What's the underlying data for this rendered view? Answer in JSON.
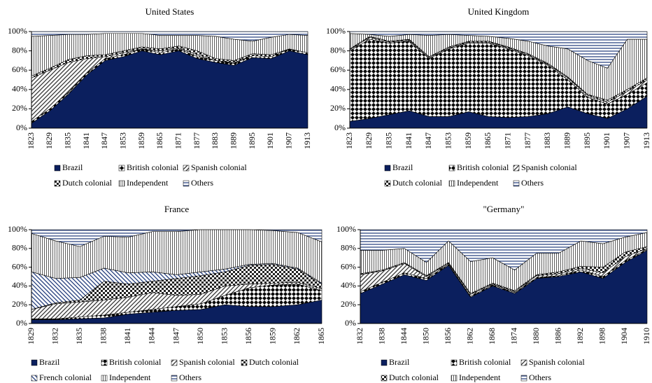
{
  "chart_data": [
    {
      "type": "area",
      "stacked": true,
      "title": "United States",
      "categories": [
        "1823",
        "1829",
        "1835",
        "1841",
        "1847",
        "1853",
        "1859",
        "1865",
        "1871",
        "1877",
        "1883",
        "1889",
        "1895",
        "1901",
        "1907",
        "1913"
      ],
      "ylim": [
        0,
        100
      ],
      "yticks": [
        {
          "value": 0,
          "label": "0%"
        },
        {
          "value": 20,
          "label": "20%"
        },
        {
          "value": 40,
          "label": "40%"
        },
        {
          "value": 60,
          "label": "60%"
        },
        {
          "value": 80,
          "label": "80%"
        },
        {
          "value": 100,
          "label": "100%"
        }
      ],
      "series": [
        {
          "name": "Brazil",
          "color": "#0b1f5e",
          "pattern": "solid",
          "values": [
            5,
            18,
            35,
            55,
            70,
            74,
            80,
            76,
            80,
            72,
            68,
            65,
            73,
            72,
            80,
            76
          ]
        },
        {
          "name": "British colonial",
          "color": "#000000",
          "pattern": "cross",
          "values": [
            2,
            2,
            2,
            2,
            2,
            2,
            2,
            2,
            2,
            2,
            2,
            2,
            2,
            2,
            2,
            2
          ]
        },
        {
          "name": "Spanish colonial",
          "color": "#333333",
          "pattern": "diagonal",
          "values": [
            45,
            40,
            31,
            15,
            2,
            2,
            0,
            2,
            1,
            2,
            0,
            1,
            0,
            0,
            0,
            0
          ]
        },
        {
          "name": "Dutch colonial",
          "color": "#222222",
          "pattern": "checker",
          "values": [
            2,
            2,
            3,
            3,
            2,
            2,
            2,
            2,
            2,
            4,
            2,
            2,
            2,
            2,
            0,
            0
          ]
        },
        {
          "name": "Independent",
          "color": "#333333",
          "pattern": "vertical",
          "values": [
            41,
            34,
            26,
            22,
            22,
            18,
            14,
            14,
            11,
            16,
            23,
            22,
            13,
            18,
            15,
            18
          ]
        },
        {
          "name": "Others",
          "color": "#1f3a7a",
          "pattern": "horizontal",
          "values": [
            5,
            4,
            3,
            3,
            2,
            2,
            2,
            4,
            4,
            4,
            5,
            8,
            10,
            6,
            3,
            4
          ]
        }
      ]
    },
    {
      "type": "area",
      "stacked": true,
      "title": "United Kingdom",
      "categories": [
        "1823",
        "1829",
        "1835",
        "1841",
        "1847",
        "1853",
        "1859",
        "1865",
        "1871",
        "1877",
        "1883",
        "1889",
        "1895",
        "1901",
        "1907",
        "1913"
      ],
      "ylim": [
        0,
        100
      ],
      "yticks": [
        {
          "value": 0,
          "label": "0%"
        },
        {
          "value": 20,
          "label": "20%"
        },
        {
          "value": 40,
          "label": "40%"
        },
        {
          "value": 60,
          "label": "60%"
        },
        {
          "value": 80,
          "label": "80%"
        },
        {
          "value": 100,
          "label": "100%"
        }
      ],
      "series": [
        {
          "name": "Brazil",
          "color": "#0b1f5e",
          "pattern": "solid",
          "values": [
            7,
            10,
            14,
            18,
            12,
            12,
            17,
            12,
            11,
            12,
            15,
            22,
            15,
            10,
            20,
            33
          ]
        },
        {
          "name": "British colonial",
          "color": "#000000",
          "pattern": "cross",
          "values": [
            73,
            82,
            74,
            72,
            60,
            70,
            71,
            76,
            71,
            63,
            50,
            28,
            17,
            15,
            15,
            14
          ]
        },
        {
          "name": "Spanish colonial",
          "color": "#333333",
          "pattern": "diagonal",
          "values": [
            1,
            2,
            1,
            1,
            1,
            1,
            1,
            1,
            1,
            1,
            1,
            2,
            2,
            2,
            3,
            3
          ]
        },
        {
          "name": "Dutch colonial",
          "color": "#222222",
          "pattern": "checker",
          "values": [
            1,
            1,
            1,
            1,
            1,
            1,
            1,
            1,
            1,
            1,
            1,
            1,
            1,
            2,
            2,
            2
          ]
        },
        {
          "name": "Independent",
          "color": "#333333",
          "pattern": "vertical",
          "values": [
            16,
            2,
            5,
            5,
            22,
            13,
            6,
            5,
            9,
            13,
            18,
            29,
            35,
            33,
            52,
            40
          ]
        },
        {
          "name": "Others",
          "color": "#1f3a7a",
          "pattern": "horizontal",
          "values": [
            2,
            3,
            5,
            3,
            4,
            3,
            4,
            5,
            7,
            10,
            15,
            18,
            30,
            38,
            8,
            8
          ]
        }
      ]
    },
    {
      "type": "area",
      "stacked": true,
      "title": "France",
      "categories": [
        "1829",
        "1832",
        "1835",
        "1838",
        "1841",
        "1844",
        "1847",
        "1850",
        "1853",
        "1856",
        "1859",
        "1862",
        "1865"
      ],
      "ylim": [
        0,
        100
      ],
      "yticks": [
        {
          "value": 0,
          "label": "0%"
        },
        {
          "value": 20,
          "label": "20%"
        },
        {
          "value": 40,
          "label": "40%"
        },
        {
          "value": 60,
          "label": "60%"
        },
        {
          "value": 80,
          "label": "80%"
        },
        {
          "value": 100,
          "label": "100%"
        }
      ],
      "series": [
        {
          "name": "Brazil",
          "color": "#0b1f5e",
          "pattern": "solid",
          "values": [
            4,
            4,
            5,
            6,
            10,
            12,
            14,
            15,
            20,
            18,
            18,
            20,
            25
          ]
        },
        {
          "name": "British colonial",
          "color": "#000000",
          "pattern": "cross",
          "values": [
            1,
            1,
            2,
            3,
            2,
            3,
            4,
            6,
            10,
            20,
            23,
            22,
            10
          ]
        },
        {
          "name": "Spanish colonial",
          "color": "#333333",
          "pattern": "diagonal",
          "values": [
            10,
            16,
            16,
            16,
            16,
            18,
            12,
            10,
            10,
            4,
            2,
            2,
            2
          ]
        },
        {
          "name": "Dutch colonial",
          "color": "#222222",
          "pattern": "checker",
          "values": [
            0,
            1,
            2,
            20,
            14,
            12,
            18,
            20,
            15,
            20,
            20,
            14,
            5
          ]
        },
        {
          "name": "French colonial",
          "color": "#1f3a7a",
          "pattern": "diagonal2",
          "values": [
            40,
            26,
            24,
            14,
            12,
            10,
            4,
            4,
            3,
            1,
            1,
            1,
            1
          ]
        },
        {
          "name": "Independent",
          "color": "#333333",
          "pattern": "vertical",
          "values": [
            41,
            40,
            33,
            34,
            38,
            43,
            46,
            45,
            42,
            37,
            35,
            38,
            44
          ]
        },
        {
          "name": "Others",
          "color": "#1f3a7a",
          "pattern": "horizontal",
          "values": [
            4,
            12,
            18,
            7,
            8,
            2,
            2,
            0,
            0,
            0,
            1,
            3,
            13
          ]
        }
      ]
    },
    {
      "type": "area",
      "stacked": true,
      "title": "\"Germany\"",
      "categories": [
        "1832",
        "1838",
        "1844",
        "1850",
        "1856",
        "1862",
        "1868",
        "1874",
        "1880",
        "1886",
        "1892",
        "1898",
        "1904",
        "1910"
      ],
      "ylim": [
        0,
        100
      ],
      "yticks": [
        {
          "value": 0,
          "label": "0%"
        },
        {
          "value": 20,
          "label": "20%"
        },
        {
          "value": 40,
          "label": "40%"
        },
        {
          "value": 60,
          "label": "60%"
        },
        {
          "value": 80,
          "label": "80%"
        },
        {
          "value": 100,
          "label": "100%"
        }
      ],
      "series": [
        {
          "name": "Brazil",
          "color": "#0b1f5e",
          "pattern": "solid",
          "values": [
            32,
            42,
            52,
            46,
            62,
            28,
            40,
            32,
            48,
            50,
            55,
            48,
            65,
            78
          ]
        },
        {
          "name": "British colonial",
          "color": "#000000",
          "pattern": "cross",
          "values": [
            2,
            2,
            2,
            2,
            1,
            1,
            1,
            1,
            1,
            1,
            2,
            2,
            2,
            1
          ]
        },
        {
          "name": "Spanish colonial",
          "color": "#333333",
          "pattern": "diagonal",
          "values": [
            18,
            12,
            10,
            2,
            1,
            2,
            1,
            1,
            2,
            2,
            2,
            4,
            4,
            1
          ]
        },
        {
          "name": "Dutch colonial",
          "color": "#222222",
          "pattern": "checker",
          "values": [
            1,
            1,
            1,
            1,
            1,
            1,
            1,
            1,
            1,
            2,
            2,
            6,
            5,
            2
          ]
        },
        {
          "name": "Independent",
          "color": "#333333",
          "pattern": "vertical",
          "values": [
            25,
            21,
            15,
            14,
            23,
            34,
            27,
            22,
            23,
            20,
            27,
            25,
            16,
            15
          ]
        },
        {
          "name": "Others",
          "color": "#1f3a7a",
          "pattern": "horizontal",
          "values": [
            22,
            22,
            20,
            35,
            12,
            34,
            30,
            43,
            25,
            25,
            12,
            15,
            8,
            3
          ]
        }
      ]
    }
  ]
}
